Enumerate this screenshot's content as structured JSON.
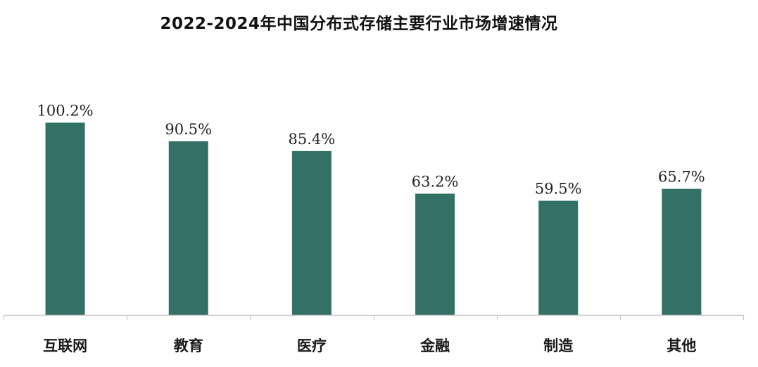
{
  "chart_data": {
    "type": "bar",
    "title": "2022-2024年中国分布式存储主要行业市场增速情况",
    "categories": [
      "互联网",
      "教育",
      "医疗",
      "金融",
      "制造",
      "其他"
    ],
    "values": [
      100.2,
      90.5,
      85.4,
      63.2,
      59.5,
      65.7
    ],
    "data_labels": [
      "100.2%",
      "90.5%",
      "85.4%",
      "63.2%",
      "59.5%",
      "65.7%"
    ],
    "unit": "%",
    "ylim": [
      0,
      115
    ],
    "grid": false,
    "legend": "none",
    "bar_color": "#337166",
    "axis_color": "#c8c8c8"
  }
}
